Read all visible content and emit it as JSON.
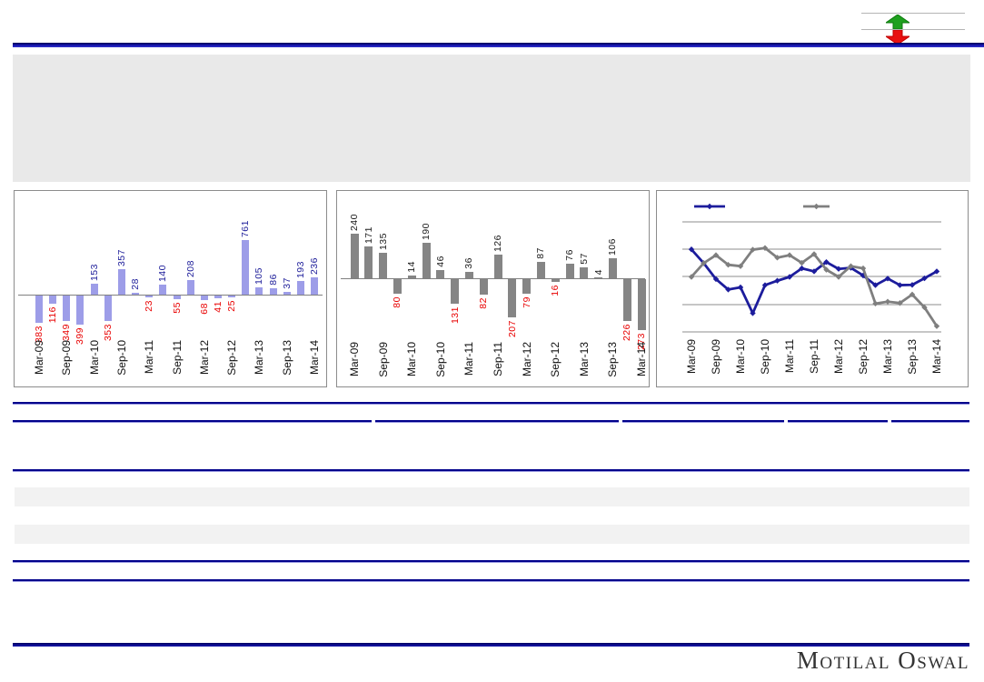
{
  "page": {
    "logo_text": "Motilal Oswal"
  },
  "colors": {
    "navy_rule": "#00008B",
    "panel_gray": "#e9e9e9",
    "band_gray": "#f2f2f2",
    "arrow_green": "#1fa01f",
    "arrow_red": "#e81010"
  },
  "icons": {
    "up": "green-up-arrow-icon",
    "down": "red-down-arrow-icon"
  },
  "chart_data": [
    {
      "type": "bar",
      "name": "left-bar-chart",
      "title": "",
      "xlabel": "",
      "ylabel": "",
      "x_ticks": [
        "Mar-09",
        "Sep-09",
        "Mar-10",
        "Sep-10",
        "Mar-11",
        "Sep-11",
        "Mar-12",
        "Sep-12",
        "Mar-13",
        "Sep-13",
        "Mar-14"
      ],
      "values": [
        -383,
        -116,
        -349,
        -399,
        153,
        -353,
        357,
        28,
        -23,
        140,
        -55,
        208,
        -68,
        -41,
        -25,
        761,
        105,
        86,
        37,
        193,
        236
      ],
      "labels": [
        "383",
        "116",
        "349",
        "399",
        "153",
        "353",
        "357",
        "28",
        "23",
        "140",
        "55",
        "208",
        "68",
        "41",
        "25",
        "761",
        "105",
        "86",
        "37",
        "193",
        "236"
      ],
      "bar_color": "#9d9de8",
      "pos_label_color": "#1c1c99",
      "neg_label_color": "#e80000",
      "ylim": [
        -450,
        800
      ],
      "grid": false
    },
    {
      "type": "bar",
      "name": "middle-bar-chart",
      "title": "",
      "xlabel": "",
      "ylabel": "",
      "x_ticks": [
        "Mar-09",
        "Sep-09",
        "Mar-10",
        "Sep-10",
        "Mar-11",
        "Sep-11",
        "Mar-12",
        "Sep-12",
        "Mar-13",
        "Sep-13",
        "Mar-14"
      ],
      "values": [
        240,
        171,
        135,
        -80,
        14,
        190,
        46,
        -131,
        36,
        -82,
        126,
        -207,
        -79,
        87,
        -16,
        76,
        57,
        4,
        106,
        -226,
        -273
      ],
      "labels": [
        "240",
        "171",
        "135",
        "80",
        "14",
        "190",
        "46",
        "131",
        "36",
        "82",
        "126",
        "207",
        "79",
        "87",
        "16",
        "76",
        "57",
        "4",
        "106",
        "226",
        "273"
      ],
      "bar_color": "#858585",
      "pos_label_color": "#1a1a1a",
      "neg_label_color": "#e80000",
      "ylim": [
        -300,
        280
      ],
      "grid": false
    },
    {
      "type": "line",
      "name": "right-line-chart",
      "title": "",
      "xlabel": "",
      "ylabel": "",
      "x_ticks": [
        "Mar-09",
        "Sep-09",
        "Mar-10",
        "Sep-10",
        "Mar-11",
        "Sep-11",
        "Mar-12",
        "Sep-12",
        "Mar-13",
        "Sep-13",
        "Mar-14"
      ],
      "series": [
        {
          "name": "blue-series",
          "color": "#1c1c9c",
          "values": [
            3.0,
            2.5,
            1.92,
            1.54,
            1.62,
            0.68,
            1.7,
            1.86,
            2.0,
            2.31,
            2.2,
            2.54,
            2.29,
            2.33,
            2.05,
            1.7,
            1.94,
            1.7,
            1.71,
            1.95,
            2.2
          ]
        },
        {
          "name": "gray-series",
          "color": "#7f7f7f",
          "values": [
            2.0,
            2.5,
            2.79,
            2.44,
            2.39,
            2.99,
            3.05,
            2.7,
            2.79,
            2.51,
            2.83,
            2.26,
            2.0,
            2.39,
            2.31,
            1.03,
            1.1,
            1.05,
            1.36,
            0.89,
            0.21
          ]
        }
      ],
      "ylim": [
        0,
        4
      ],
      "y_axis_labels": [],
      "gridlines": 5,
      "grid": true,
      "legend": {
        "position": "top",
        "labels": [
          "",
          ""
        ]
      }
    }
  ]
}
